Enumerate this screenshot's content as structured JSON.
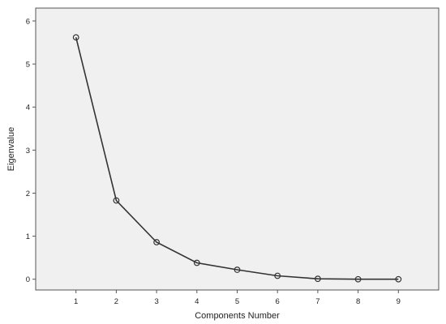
{
  "chart_data": {
    "type": "line",
    "title": "",
    "xlabel": "Components Number",
    "ylabel": "Eigenvalue",
    "x": [
      1,
      2,
      3,
      4,
      5,
      6,
      7,
      8,
      9
    ],
    "series": [
      {
        "values": [
          5.62,
          1.83,
          0.86,
          0.38,
          0.22,
          0.08,
          0.01,
          0.0,
          0.0
        ]
      }
    ],
    "xlim": [
      0,
      10
    ],
    "ylim": [
      -0.25,
      6.3
    ],
    "xticks": [
      "1",
      "2",
      "3",
      "4",
      "5",
      "6",
      "7",
      "8",
      "9"
    ],
    "yticks": [
      "0",
      "1",
      "2",
      "3",
      "4",
      "5",
      "6"
    ],
    "marker": "open-circle",
    "grid": false,
    "legend": "none"
  },
  "colors": {
    "plot_background": "#f0f0f0",
    "line": "#333333",
    "axis": "#555555"
  }
}
